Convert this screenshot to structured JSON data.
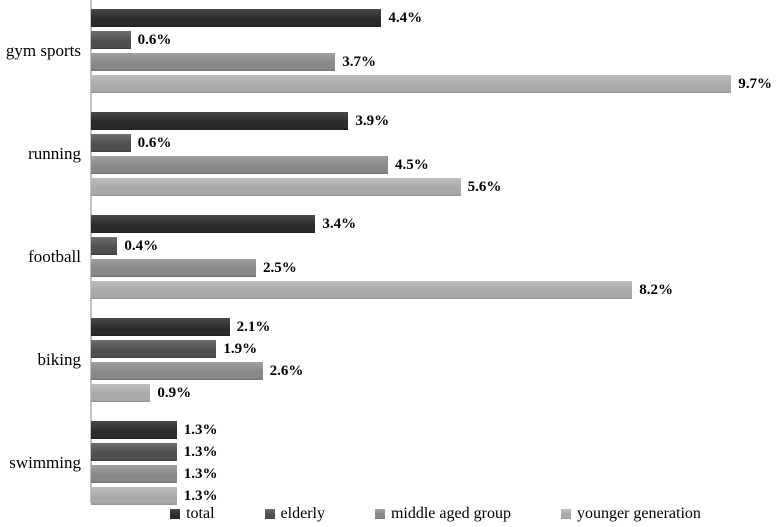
{
  "chart_data": {
    "type": "bar",
    "orientation": "horizontal",
    "title": "",
    "xlabel": "",
    "ylabel": "",
    "xlim": [
      0,
      10.3
    ],
    "grid": false,
    "legend_position": "bottom",
    "axis_color": "#c2c2c2",
    "categories": [
      "gym sports",
      "running",
      "football",
      "biking",
      "swimming"
    ],
    "series": [
      {
        "name": "total",
        "color": "#2b2b2b",
        "color_light": "#4a4a4a",
        "color_dark": "#1e1e1e",
        "values": [
          4.4,
          3.9,
          3.4,
          2.1,
          1.3
        ],
        "labels": [
          "4.4%",
          "3.9%",
          "3.4%",
          "2.1%",
          "1.3%"
        ]
      },
      {
        "name": "elderly",
        "color": "#4f4f4f",
        "color_light": "#6e6e6e",
        "color_dark": "#3d3d3d",
        "values": [
          0.6,
          0.6,
          0.4,
          1.9,
          1.3
        ],
        "labels": [
          "0.6%",
          "0.6%",
          "0.4%",
          "1.9%",
          "1.3%"
        ]
      },
      {
        "name": "middle aged group",
        "color": "#888888",
        "color_light": "#a0a0a0",
        "color_dark": "#717171",
        "values": [
          3.7,
          4.5,
          2.5,
          2.6,
          1.3
        ],
        "labels": [
          "3.7%",
          "4.5%",
          "2.5%",
          "2.6%",
          "1.3%"
        ]
      },
      {
        "name": "younger generation",
        "color": "#a9a9a9",
        "color_light": "#bdbdbd",
        "color_dark": "#909090",
        "values": [
          9.7,
          5.6,
          8.2,
          0.9,
          1.3
        ],
        "labels": [
          "9.7%",
          "5.6%",
          "8.2%",
          "0.9%",
          "1.3%"
        ]
      }
    ]
  }
}
